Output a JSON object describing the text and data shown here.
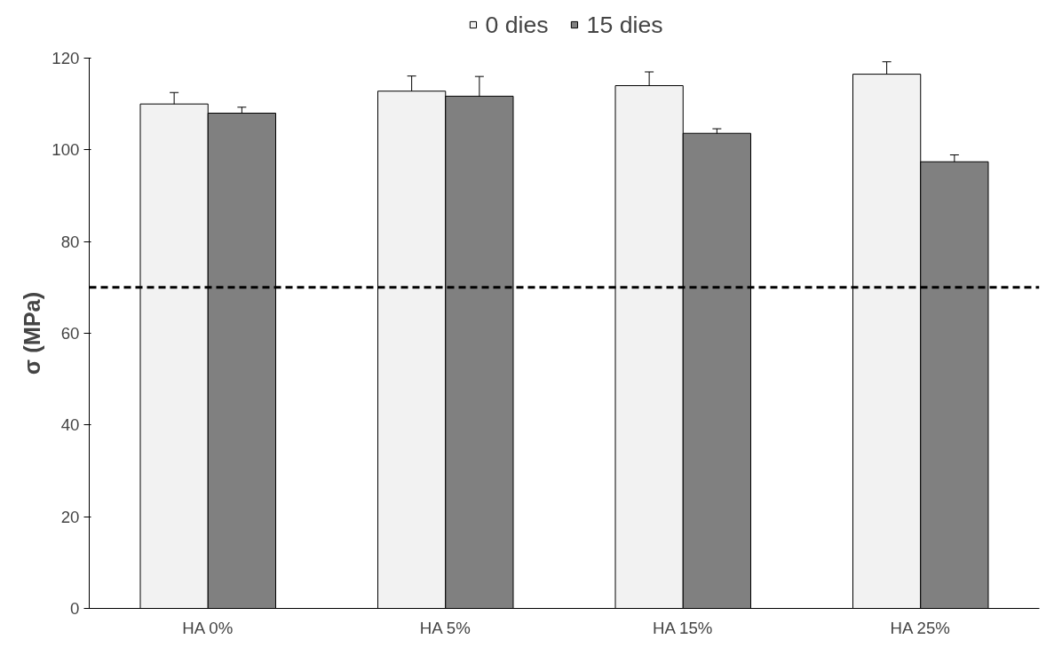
{
  "chart_data": {
    "type": "bar",
    "ylabel": "σ (MPa)",
    "categories": [
      "HA 0%",
      "HA 5%",
      "HA 15%",
      "HA 25%"
    ],
    "series": [
      {
        "name": "0 dies",
        "color": "#f2f2f2",
        "values": [
          110,
          112.8,
          114,
          116.5
        ],
        "errors": [
          2.5,
          3.3,
          3,
          2.7
        ]
      },
      {
        "name": "15 dies",
        "color": "#808080",
        "values": [
          108,
          111.7,
          103.6,
          97.4
        ],
        "errors": [
          1.3,
          4.3,
          1,
          1.5
        ]
      }
    ],
    "ylim": [
      0,
      120
    ],
    "yticks": [
      0,
      20,
      40,
      60,
      80,
      100,
      120
    ],
    "ref_lines": [
      {
        "axis": "y",
        "value": 70,
        "color": "#000000",
        "line_style": "dashed"
      }
    ],
    "grid": false,
    "legend": "top"
  }
}
